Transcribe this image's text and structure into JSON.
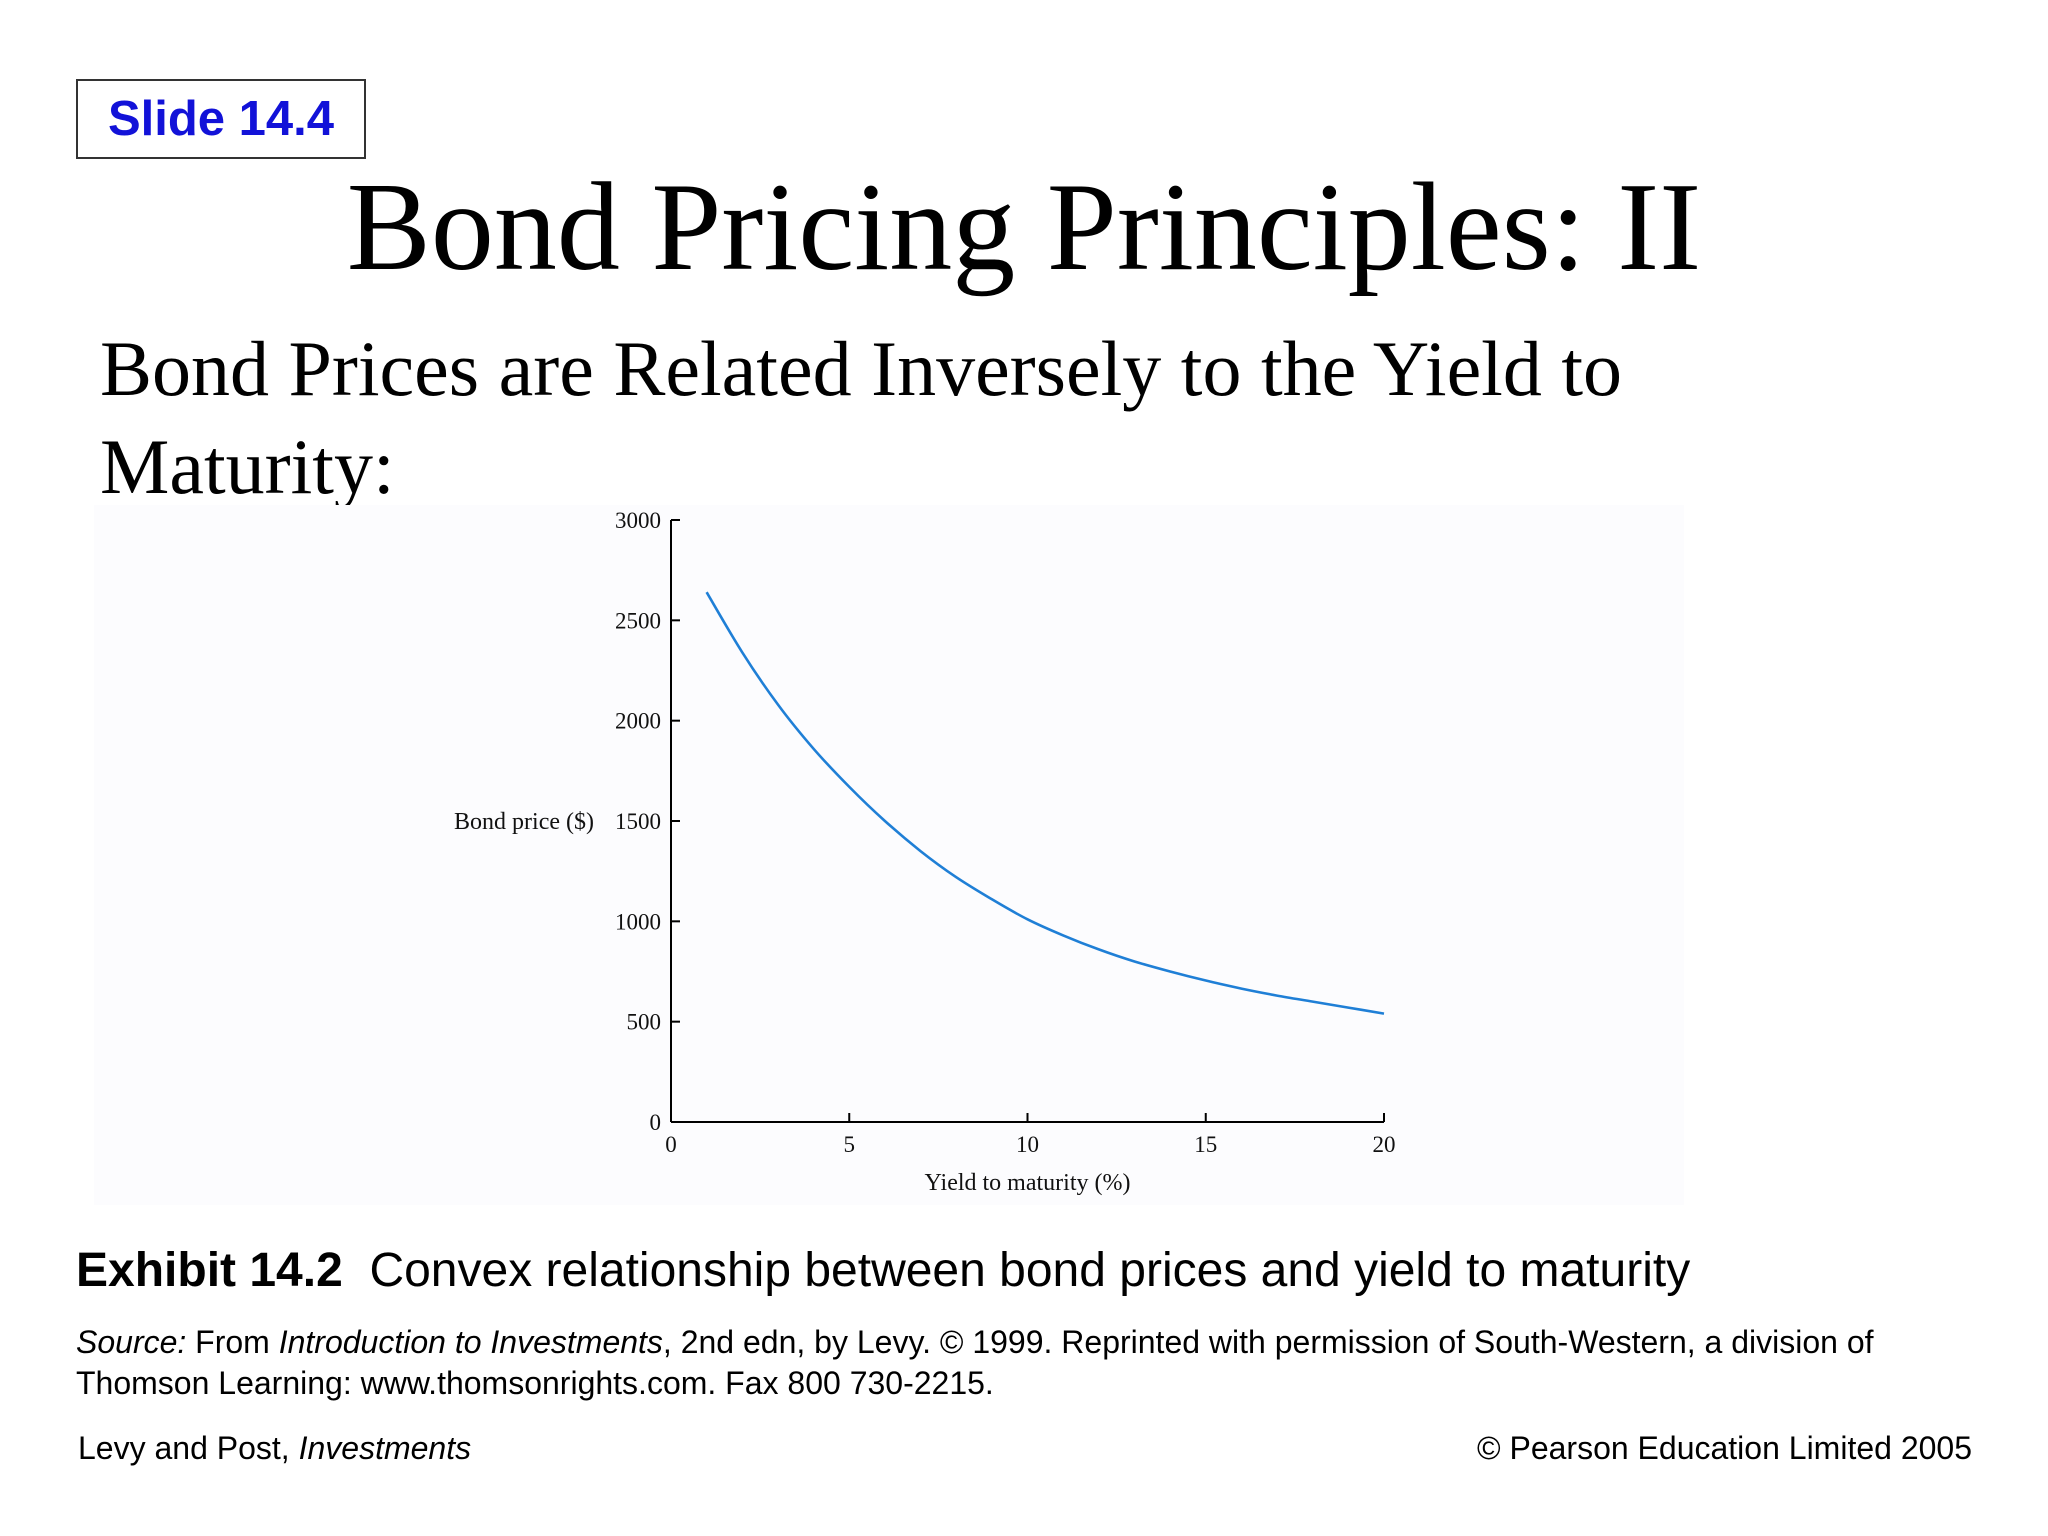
{
  "slide": {
    "badge": "Slide 14.4",
    "title": "Bond Pricing Principles: II",
    "subtitle_line1": "Bond Prices are Related Inversely to the Yield to",
    "subtitle_line2": "Maturity:"
  },
  "exhibit": {
    "label": "Exhibit 14.2",
    "caption": "Convex relationship between bond prices and yield to maturity"
  },
  "source": {
    "prefix": "Source:",
    "text_a": " From ",
    "book": "Introduction to Investments",
    "text_b": ", 2nd edn, by Levy. © 1999. Reprinted with permission of South-Western, a division of Thomson Learning: www.thomsonrights.com. Fax 800 730-2215."
  },
  "footer": {
    "authors": "Levy and Post, ",
    "book": "Investments",
    "copyright": "© Pearson Education Limited 2005"
  },
  "colors": {
    "badge_text": "#1212d8",
    "curve": "#1f7fd6"
  },
  "chart_data": {
    "type": "line",
    "xlabel": "Yield to maturity (%)",
    "ylabel": "Bond price ($)",
    "xlim": [
      0,
      20
    ],
    "ylim": [
      0,
      3000
    ],
    "xticks": [
      0,
      5,
      10,
      15,
      20
    ],
    "yticks": [
      0,
      500,
      1000,
      1500,
      2000,
      2500,
      3000
    ],
    "grid": false,
    "series": [
      {
        "x": [
          1,
          2,
          3,
          4,
          5,
          6,
          7,
          8,
          9,
          10,
          11,
          12,
          13,
          14,
          15,
          16,
          17,
          18,
          19,
          20
        ],
        "values": [
          2640,
          2340,
          2080,
          1860,
          1670,
          1500,
          1350,
          1220,
          1110,
          1010,
          930,
          860,
          800,
          750,
          705,
          665,
          630,
          600,
          570,
          540
        ]
      }
    ]
  }
}
